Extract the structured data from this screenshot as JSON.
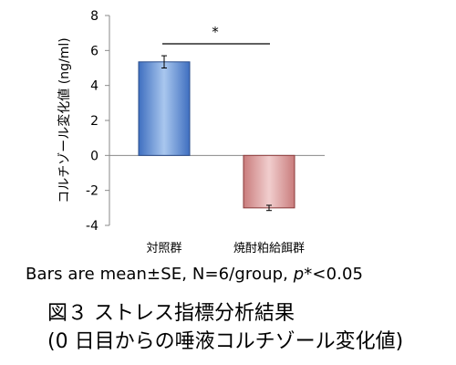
{
  "chart_data": {
    "type": "bar",
    "categories": [
      "対照群",
      "焼酎粕給餌群"
    ],
    "values": [
      5.35,
      -3.0
    ],
    "errors": [
      0.35,
      0.15
    ],
    "ylabel": "コルチゾール変化値 (ng/ml)",
    "xlabel": "",
    "ylim": [
      -4,
      8
    ],
    "yticks": [
      "8",
      "6",
      "4",
      "2",
      "0",
      "-2",
      "-4"
    ],
    "grid": false,
    "legend": "none",
    "significance_label": "*",
    "bar_colors": [
      {
        "light": "#a9c7ee",
        "dark": "#3f6fc0",
        "stroke": "#2a4c8a"
      },
      {
        "light": "#f1cece",
        "dark": "#c97c7c",
        "stroke": "#8a3a3a"
      }
    ]
  },
  "note": {
    "prefix": "Bars are mean±SE, N=6/group, ",
    "p": "p",
    "suffix": "*<0.05"
  },
  "caption": {
    "line1": "図３ ストレス指標分析結果",
    "line2": "(0 日目からの唾液コルチゾール変化値)"
  }
}
